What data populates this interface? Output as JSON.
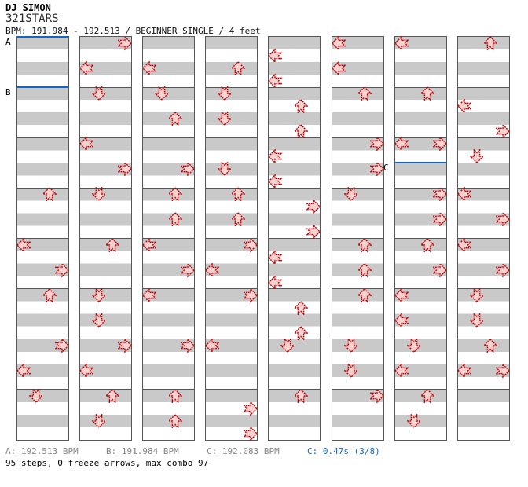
{
  "header": {
    "artist": "DJ SIMON",
    "title": "321STARS",
    "info": "BPM: 191.984 - 192.513 / BEGINNER SINGLE / 4 feet"
  },
  "footer": {
    "bpm_a": "A: 192.513 BPM",
    "bpm_b": "B: 191.984 BPM",
    "bpm_c": "C: 192.083 BPM",
    "gap_c": "C: 0.47s (3/8)",
    "summary": "95 steps, 0 freeze arrows, max combo 97"
  },
  "colors": {
    "accent_blue": "#1565c8",
    "arrow_stroke": "#c00000",
    "arrow_fill": "#f7d2d2",
    "band_gray": "#c9c9c9",
    "grid_border": "#565656",
    "footer_gray": "#848484"
  },
  "chart": {
    "bands_per_column": 32,
    "bands_per_measure": 4,
    "lanes": [
      "left",
      "down",
      "up",
      "right"
    ],
    "markers": [
      {
        "label": "A",
        "column": 0,
        "band": 0
      },
      {
        "label": "B",
        "column": 0,
        "band": 4
      },
      {
        "label": "C",
        "column": 6,
        "band": 10
      }
    ],
    "columns": [
      {
        "arrows": [
          {
            "band": 12,
            "dir": "up"
          },
          {
            "band": 16,
            "dir": "left"
          },
          {
            "band": 18,
            "dir": "right"
          },
          {
            "band": 20,
            "dir": "up"
          },
          {
            "band": 24,
            "dir": "right"
          },
          {
            "band": 26,
            "dir": "left"
          },
          {
            "band": 28,
            "dir": "down"
          }
        ]
      },
      {
        "arrows": [
          {
            "band": 0,
            "dir": "right"
          },
          {
            "band": 2,
            "dir": "left"
          },
          {
            "band": 4,
            "dir": "down"
          },
          {
            "band": 8,
            "dir": "left"
          },
          {
            "band": 10,
            "dir": "right"
          },
          {
            "band": 12,
            "dir": "down"
          },
          {
            "band": 16,
            "dir": "up"
          },
          {
            "band": 20,
            "dir": "down"
          },
          {
            "band": 22,
            "dir": "down"
          },
          {
            "band": 24,
            "dir": "right"
          },
          {
            "band": 26,
            "dir": "left"
          },
          {
            "band": 28,
            "dir": "up"
          },
          {
            "band": 30,
            "dir": "down"
          }
        ]
      },
      {
        "arrows": [
          {
            "band": 2,
            "dir": "left"
          },
          {
            "band": 4,
            "dir": "down"
          },
          {
            "band": 6,
            "dir": "up"
          },
          {
            "band": 10,
            "dir": "right"
          },
          {
            "band": 12,
            "dir": "up"
          },
          {
            "band": 14,
            "dir": "up"
          },
          {
            "band": 16,
            "dir": "left"
          },
          {
            "band": 18,
            "dir": "right"
          },
          {
            "band": 20,
            "dir": "left"
          },
          {
            "band": 24,
            "dir": "right"
          },
          {
            "band": 28,
            "dir": "up"
          },
          {
            "band": 30,
            "dir": "up"
          }
        ]
      },
      {
        "arrows": [
          {
            "band": 2,
            "dir": "up"
          },
          {
            "band": 4,
            "dir": "down"
          },
          {
            "band": 6,
            "dir": "down"
          },
          {
            "band": 10,
            "dir": "down"
          },
          {
            "band": 12,
            "dir": "up"
          },
          {
            "band": 14,
            "dir": "up"
          },
          {
            "band": 16,
            "dir": "right"
          },
          {
            "band": 18,
            "dir": "left"
          },
          {
            "band": 20,
            "dir": "right"
          },
          {
            "band": 24,
            "dir": "left"
          },
          {
            "band": 29,
            "dir": "right"
          },
          {
            "band": 31,
            "dir": "right"
          }
        ]
      },
      {
        "arrows": [
          {
            "band": 1,
            "dir": "left"
          },
          {
            "band": 3,
            "dir": "left"
          },
          {
            "band": 5,
            "dir": "up"
          },
          {
            "band": 7,
            "dir": "up"
          },
          {
            "band": 9,
            "dir": "left"
          },
          {
            "band": 11,
            "dir": "left"
          },
          {
            "band": 13,
            "dir": "right"
          },
          {
            "band": 15,
            "dir": "right"
          },
          {
            "band": 17,
            "dir": "left"
          },
          {
            "band": 19,
            "dir": "left"
          },
          {
            "band": 21,
            "dir": "up"
          },
          {
            "band": 23,
            "dir": "up"
          },
          {
            "band": 24,
            "dir": "down"
          },
          {
            "band": 28,
            "dir": "up"
          }
        ]
      },
      {
        "arrows": [
          {
            "band": 0,
            "dir": "left"
          },
          {
            "band": 2,
            "dir": "left"
          },
          {
            "band": 4,
            "dir": "up"
          },
          {
            "band": 8,
            "dir": "right"
          },
          {
            "band": 10,
            "dir": "right"
          },
          {
            "band": 12,
            "dir": "down"
          },
          {
            "band": 16,
            "dir": "up"
          },
          {
            "band": 18,
            "dir": "up"
          },
          {
            "band": 20,
            "dir": "up"
          },
          {
            "band": 24,
            "dir": "down"
          },
          {
            "band": 26,
            "dir": "down"
          },
          {
            "band": 28,
            "dir": "right"
          }
        ]
      },
      {
        "arrows": [
          {
            "band": 0,
            "dir": "left"
          },
          {
            "band": 4,
            "dir": "up"
          },
          {
            "band": 8,
            "dir": "left"
          },
          {
            "band": 8,
            "dir": "right"
          },
          {
            "band": 12,
            "dir": "right"
          },
          {
            "band": 14,
            "dir": "right"
          },
          {
            "band": 16,
            "dir": "up"
          },
          {
            "band": 18,
            "dir": "right"
          },
          {
            "band": 20,
            "dir": "left"
          },
          {
            "band": 22,
            "dir": "left"
          },
          {
            "band": 24,
            "dir": "down"
          },
          {
            "band": 26,
            "dir": "left"
          },
          {
            "band": 28,
            "dir": "up"
          },
          {
            "band": 30,
            "dir": "down"
          }
        ]
      },
      {
        "arrows": [
          {
            "band": 0,
            "dir": "up"
          },
          {
            "band": 5,
            "dir": "left"
          },
          {
            "band": 7,
            "dir": "right"
          },
          {
            "band": 9,
            "dir": "down"
          },
          {
            "band": 12,
            "dir": "left"
          },
          {
            "band": 14,
            "dir": "right"
          },
          {
            "band": 16,
            "dir": "left"
          },
          {
            "band": 18,
            "dir": "right"
          },
          {
            "band": 20,
            "dir": "down"
          },
          {
            "band": 22,
            "dir": "down"
          },
          {
            "band": 24,
            "dir": "up"
          },
          {
            "band": 26,
            "dir": "left"
          },
          {
            "band": 26,
            "dir": "right"
          }
        ]
      }
    ]
  }
}
